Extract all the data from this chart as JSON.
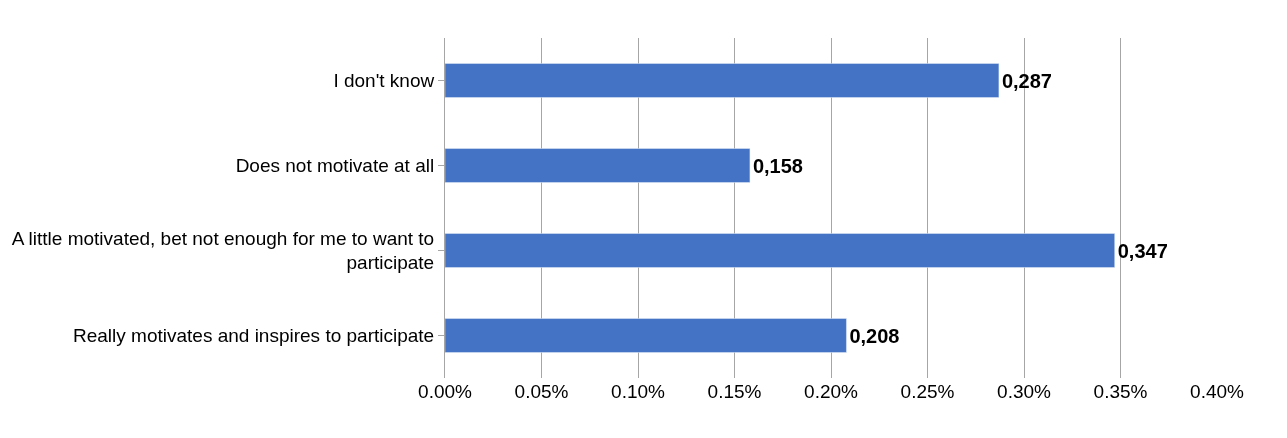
{
  "chart_data": {
    "type": "bar",
    "orientation": "horizontal",
    "categories": [
      "I don't know",
      "Does not motivate at all",
      "A little motivated, bet not enough for me to want to participate",
      "Really motivates and inspires to participate"
    ],
    "values": [
      0.287,
      0.158,
      0.347,
      0.208
    ],
    "value_labels": [
      "0,287",
      "0,158",
      "0,347",
      "0,208"
    ],
    "color": "#4472c4",
    "xlim": [
      0,
      0.4
    ],
    "xticks": [
      {
        "value": 0,
        "label": "0.00%"
      },
      {
        "value": 0.05,
        "label": "0.05%"
      },
      {
        "value": 0.1,
        "label": "0.10%"
      },
      {
        "value": 0.15,
        "label": "0.15%"
      },
      {
        "value": 0.2,
        "label": "0.20%"
      },
      {
        "value": 0.25,
        "label": "0.25%"
      },
      {
        "value": 0.3,
        "label": "0.30%"
      },
      {
        "value": 0.35,
        "label": "0.35%"
      },
      {
        "value": 0.4,
        "label": "0.40%"
      }
    ],
    "grid": "x",
    "legend": false
  }
}
